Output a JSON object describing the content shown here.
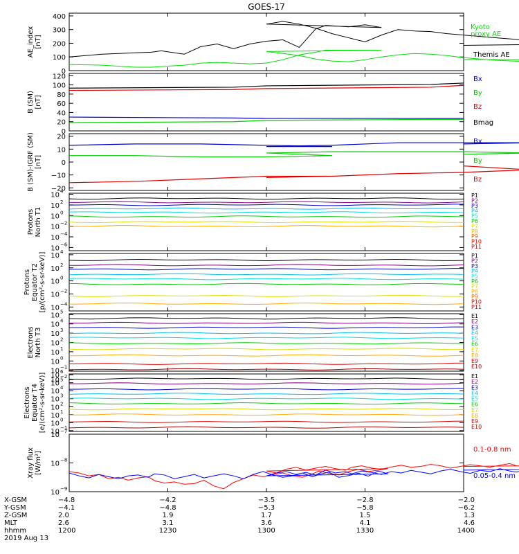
{
  "title": "GOES-17",
  "chart_data": [
    {
      "type": "line",
      "panel": "ae",
      "ylabel": [
        "AE_index",
        "[nT]"
      ],
      "yticks": [
        "400",
        "300",
        "200",
        "100",
        "0"
      ],
      "ylim": [
        0,
        420
      ],
      "x": [
        1200,
        1210,
        1220,
        1225,
        1228,
        1235,
        1240,
        1245,
        1250,
        1255,
        1260,
        1265,
        1270,
        1275,
        1278,
        1285,
        1290,
        1295,
        1300,
        1305,
        1310,
        1315,
        1320,
        1325,
        1330,
        1335,
        1340,
        1345,
        1350,
        1355,
        1360,
        1365,
        1370,
        1375,
        1380,
        1385,
        1390,
        1395,
        1400
      ],
      "series": [
        {
          "name": "Kyoto proxy AE",
          "color": "#00dd00",
          "values": [
            45,
            40,
            25,
            25,
            30,
            40,
            55,
            60,
            55,
            50,
            55,
            80,
            115,
            135,
            150,
            150,
            150,
            150,
            140,
            125,
            110,
            85,
            70,
            65,
            80,
            100,
            115,
            125,
            120,
            110,
            95,
            85,
            75,
            70,
            65,
            68,
            72,
            78,
            82
          ]
        },
        {
          "name": "Themis AE",
          "color": "#000000",
          "values": [
            100,
            120,
            130,
            135,
            145,
            120,
            175,
            195,
            160,
            195,
            215,
            225,
            170,
            305,
            330,
            320,
            335,
            315,
            340,
            360,
            340,
            310,
            270,
            240,
            210,
            260,
            300,
            290,
            285,
            270,
            260,
            250,
            240,
            230,
            220,
            210,
            205,
            195,
            185
          ]
        }
      ],
      "legend": [
        "Kyoto",
        "proxy AE",
        "Themis AE"
      ]
    },
    {
      "type": "line",
      "panel": "b",
      "ylabel": [
        "B (SM)",
        "[nT]"
      ],
      "yticks": [
        "120",
        "100",
        "80",
        "60",
        "40",
        "20",
        "0"
      ],
      "ylim": [
        0,
        125
      ],
      "x": [
        1200,
        1250,
        1300,
        1350,
        1400
      ],
      "series": [
        {
          "name": "Bx",
          "color": "#0000cc",
          "values": [
            30,
            28,
            27,
            27,
            27
          ]
        },
        {
          "name": "By",
          "color": "#00cc00",
          "values": [
            18,
            20,
            23,
            25,
            25
          ]
        },
        {
          "name": "Bz",
          "color": "#dd0000",
          "values": [
            88,
            90,
            92,
            95,
            99
          ]
        },
        {
          "name": "Bmag",
          "color": "#000000",
          "values": [
            93,
            95,
            98,
            101,
            104
          ]
        }
      ]
    },
    {
      "type": "line",
      "panel": "db",
      "ylabel": [
        "B (SM)-IGRF (SM)",
        "[nT]"
      ],
      "yticks": [
        "20",
        "10",
        "0",
        "−10",
        "−20"
      ],
      "ylim": [
        -22,
        22
      ],
      "x": [
        1200,
        1220,
        1240,
        1260,
        1280,
        1300,
        1320,
        1340,
        1360,
        1380,
        1400
      ],
      "series": [
        {
          "name": "Bx",
          "color": "#0000cc",
          "values": [
            13,
            14,
            14,
            13,
            12,
            12,
            13,
            15,
            15,
            15,
            14
          ]
        },
        {
          "name": "By",
          "color": "#00cc00",
          "values": [
            5,
            5,
            4,
            4,
            5,
            7,
            8,
            8,
            8,
            7,
            6
          ]
        },
        {
          "name": "Bz",
          "color": "#dd0000",
          "values": [
            -16,
            -15,
            -13,
            -11,
            -11,
            -12,
            -11,
            -9,
            -8,
            -6,
            -3
          ]
        }
      ]
    },
    {
      "type": "line",
      "panel": "p1",
      "log": true,
      "ylabel": [
        "Protons",
        "North T1"
      ],
      "yticks": [
        "10",
        "10",
        "10",
        "10",
        "10",
        "10"
      ],
      "yexp": [
        "4",
        "2",
        "0",
        "−2",
        "−4",
        "−6"
      ],
      "ylim_exp": [
        -6.6,
        4.2
      ],
      "channels": [
        {
          "name": "P1",
          "color": "#000000",
          "log10": 3.2
        },
        {
          "name": "P2",
          "color": "#800080",
          "log10": 2.5
        },
        {
          "name": "P3",
          "color": "#0000cc",
          "log10": 2.0
        },
        {
          "name": "P4",
          "color": "#00bbee",
          "log10": 1.3
        },
        {
          "name": "P5",
          "color": "#00dddd",
          "log10": 0.6
        },
        {
          "name": "P6",
          "color": "#00cc00",
          "log10": -0.2
        },
        {
          "name": "P7",
          "color": "#dddd00",
          "log10": -1.2
        },
        {
          "name": "P8",
          "color": "#ffaa00",
          "log10": -2.0
        },
        {
          "name": "P9",
          "color": "#ee6600",
          "log10": -9
        },
        {
          "name": "P10",
          "color": "#dd0000",
          "log10": -9
        },
        {
          "name": "P11",
          "color": "#aa0000",
          "log10": -9
        }
      ]
    },
    {
      "type": "line",
      "panel": "p2",
      "log": true,
      "ylabel": [
        "Protons",
        "Equator T2",
        "[p/(cm²-s-sr-keV)]"
      ],
      "yticks": [
        "10",
        "10",
        "10",
        "10",
        "10"
      ],
      "yexp": [
        "4",
        "2",
        "0",
        "−2",
        "−4"
      ],
      "ylim_exp": [
        -4.6,
        4.2
      ],
      "channels": [
        {
          "name": "P1",
          "color": "#000000",
          "log10": 3.2
        },
        {
          "name": "P2",
          "color": "#800080",
          "log10": 2.4
        },
        {
          "name": "P3",
          "color": "#0000cc",
          "log10": 1.8
        },
        {
          "name": "P4",
          "color": "#00bbee",
          "log10": 1.0
        },
        {
          "name": "P5",
          "color": "#00dddd",
          "log10": 0.3
        },
        {
          "name": "P6",
          "color": "#00cc00",
          "log10": -0.5
        },
        {
          "name": "P7",
          "color": "#dddd00",
          "log10": -2.3
        },
        {
          "name": "P8",
          "color": "#ffaa00",
          "log10": -3.5
        },
        {
          "name": "P9",
          "color": "#ee6600",
          "log10": -9
        },
        {
          "name": "P10",
          "color": "#dd0000",
          "log10": -9
        },
        {
          "name": "P11",
          "color": "#aa0000",
          "log10": -9
        }
      ]
    },
    {
      "type": "line",
      "panel": "e1",
      "log": true,
      "ylabel": [
        "Electrons",
        "North T3"
      ],
      "yticks": [
        "10",
        "10",
        "10",
        "10",
        "10",
        "10",
        "10",
        "10"
      ],
      "yexp": [
        "5",
        "4",
        "3",
        "2",
        "1",
        "0",
        "−1",
        "−2"
      ],
      "ylim_exp": [
        -1.1,
        5.1
      ],
      "channels": [
        {
          "name": "E1",
          "color": "#000000",
          "log10": 4.6
        },
        {
          "name": "E2",
          "color": "#800080",
          "log10": 4.1
        },
        {
          "name": "E3",
          "color": "#0000cc",
          "log10": 3.6
        },
        {
          "name": "E4",
          "color": "#00bbee",
          "log10": 3.0
        },
        {
          "name": "E5",
          "color": "#00dddd",
          "log10": 2.5
        },
        {
          "name": "E6",
          "color": "#00cc00",
          "log10": 1.9
        },
        {
          "name": "E7",
          "color": "#dddd00",
          "log10": 1.3
        },
        {
          "name": "E8",
          "color": "#ffaa00",
          "log10": 0.6
        },
        {
          "name": "E9",
          "color": "#dd0000",
          "log10": -0.3
        },
        {
          "name": "E10",
          "color": "#aa0000",
          "log10": -0.9
        }
      ]
    },
    {
      "type": "line",
      "panel": "e2",
      "log": true,
      "ylabel": [
        "Electrons",
        "Equator T4",
        "[e/(cm²-s-sr-keV)]"
      ],
      "yticks": [
        "10",
        "10",
        "10",
        "10",
        "10",
        "10",
        "10",
        "10"
      ],
      "yexp": [
        "6",
        "5",
        "4",
        "3",
        "2",
        "1",
        "0",
        "−1"
      ],
      "ylim_exp": [
        -1.1,
        6.1
      ],
      "channels": [
        {
          "name": "E1",
          "color": "#000000",
          "log10": 5.5
        },
        {
          "name": "E2",
          "color": "#800080",
          "log10": 4.9
        },
        {
          "name": "E3",
          "color": "#0000cc",
          "log10": 4.2
        },
        {
          "name": "E4",
          "color": "#00bbee",
          "log10": 3.6
        },
        {
          "name": "E5",
          "color": "#00dddd",
          "log10": 3.0
        },
        {
          "name": "E6",
          "color": "#00cc00",
          "log10": 2.4
        },
        {
          "name": "E7",
          "color": "#dddd00",
          "log10": 1.7
        },
        {
          "name": "E8",
          "color": "#ffaa00",
          "log10": 1.0
        },
        {
          "name": "E9",
          "color": "#dd0000",
          "log10": 0.1
        },
        {
          "name": "E10",
          "color": "#aa0000",
          "log10": -0.6
        }
      ]
    },
    {
      "type": "line",
      "panel": "xray",
      "log": true,
      "ylabel": [
        "Xray flux",
        "[W/m²]"
      ],
      "yticks": [
        "10",
        "10",
        "10"
      ],
      "yexp": [
        "−7",
        "−8",
        "−9"
      ],
      "ylim_exp": [
        -9,
        -7
      ],
      "x_range": [
        1200,
        1400
      ],
      "series": [
        {
          "name": "0.1-0.8 nm",
          "color": "#ff0000",
          "log10": [
            -8.3,
            -8.35,
            -8.45,
            -8.4,
            -8.55,
            -8.5,
            -8.6,
            -8.52,
            -8.48,
            -8.62,
            -8.7,
            -8.66,
            -8.74,
            -8.72,
            -8.6,
            -8.8,
            -8.9,
            -8.68,
            -8.55,
            -8.42,
            -8.48,
            -8.4,
            -8.35,
            -8.45,
            -8.5,
            -8.38,
            -8.28,
            -8.36,
            -8.42,
            -8.3,
            -8.22,
            -8.3,
            -8.25,
            -8.2,
            -8.28,
            -8.35,
            -8.22,
            -8.15,
            -8.25,
            -8.18,
            -8.12,
            -8.2,
            -8.25,
            -8.15,
            -8.1,
            -8.18,
            -8.22,
            -8.14,
            -8.08,
            -8.15,
            -8.12,
            -8.05,
            -8.1,
            -8.18,
            -8.12,
            -8.06,
            -8.1,
            -8.15,
            -8.08,
            -8.02,
            -8.1,
            -8.14,
            -8.06,
            -8.1,
            -8.12,
            -8.05,
            -8.0,
            -8.08,
            -8.12
          ]
        },
        {
          "name": "0.05-0.4 nm",
          "color": "#0000ff",
          "log10": [
            -8.35,
            -8.45,
            -8.52,
            -8.4,
            -8.48,
            -8.55,
            -8.45,
            -8.42,
            -8.5,
            -8.38,
            -8.42,
            -8.55,
            -8.48,
            -8.4,
            -8.52,
            -8.45,
            -8.38,
            -8.45,
            -8.55,
            -8.4,
            -8.3,
            -8.42,
            -8.5,
            -8.45,
            -8.35,
            -8.48,
            -8.4,
            -8.32,
            -8.5,
            -8.44,
            -8.36,
            -8.46,
            -8.28,
            -8.38,
            -8.45,
            -8.35,
            -8.3,
            -8.4,
            -8.33,
            -8.42,
            -8.25,
            -8.35,
            -8.3,
            -8.38,
            -8.28,
            -8.33,
            -8.4,
            -8.3,
            -8.35,
            -8.26,
            -8.32,
            -8.38,
            -8.28,
            -8.22,
            -8.3,
            -8.36,
            -8.26,
            -8.3,
            -8.2,
            -8.28,
            -8.32,
            -8.24,
            -8.3,
            -8.2,
            -8.26,
            -8.22,
            -8.28,
            -8.2,
            -8.25
          ]
        }
      ]
    }
  ],
  "xaxis": {
    "row_labels": [
      "X-GSM",
      "Y-GSM",
      "Z-GSM",
      "MLT",
      "hhmm",
      "2019 Aug 13"
    ],
    "columns": [
      {
        "hhmm": 1200,
        "values": [
          "−4.8",
          "−4.1",
          "2.0",
          "2.6",
          "1200"
        ]
      },
      {
        "hhmm": 1230,
        "values": [
          "−4.2",
          "−4.8",
          "1.9",
          "3.1",
          "1230"
        ]
      },
      {
        "hhmm": 1300,
        "values": [
          "−3.5",
          "−5.3",
          "1.7",
          "3.6",
          "1300"
        ]
      },
      {
        "hhmm": 1330,
        "values": [
          "−2.8",
          "−5.8",
          "1.5",
          "4.1",
          "1330"
        ]
      },
      {
        "hhmm": 1400,
        "values": [
          "−2.0",
          "−6.2",
          "1.3",
          "4.6",
          "1400"
        ]
      }
    ],
    "range": [
      1200,
      1400
    ]
  }
}
